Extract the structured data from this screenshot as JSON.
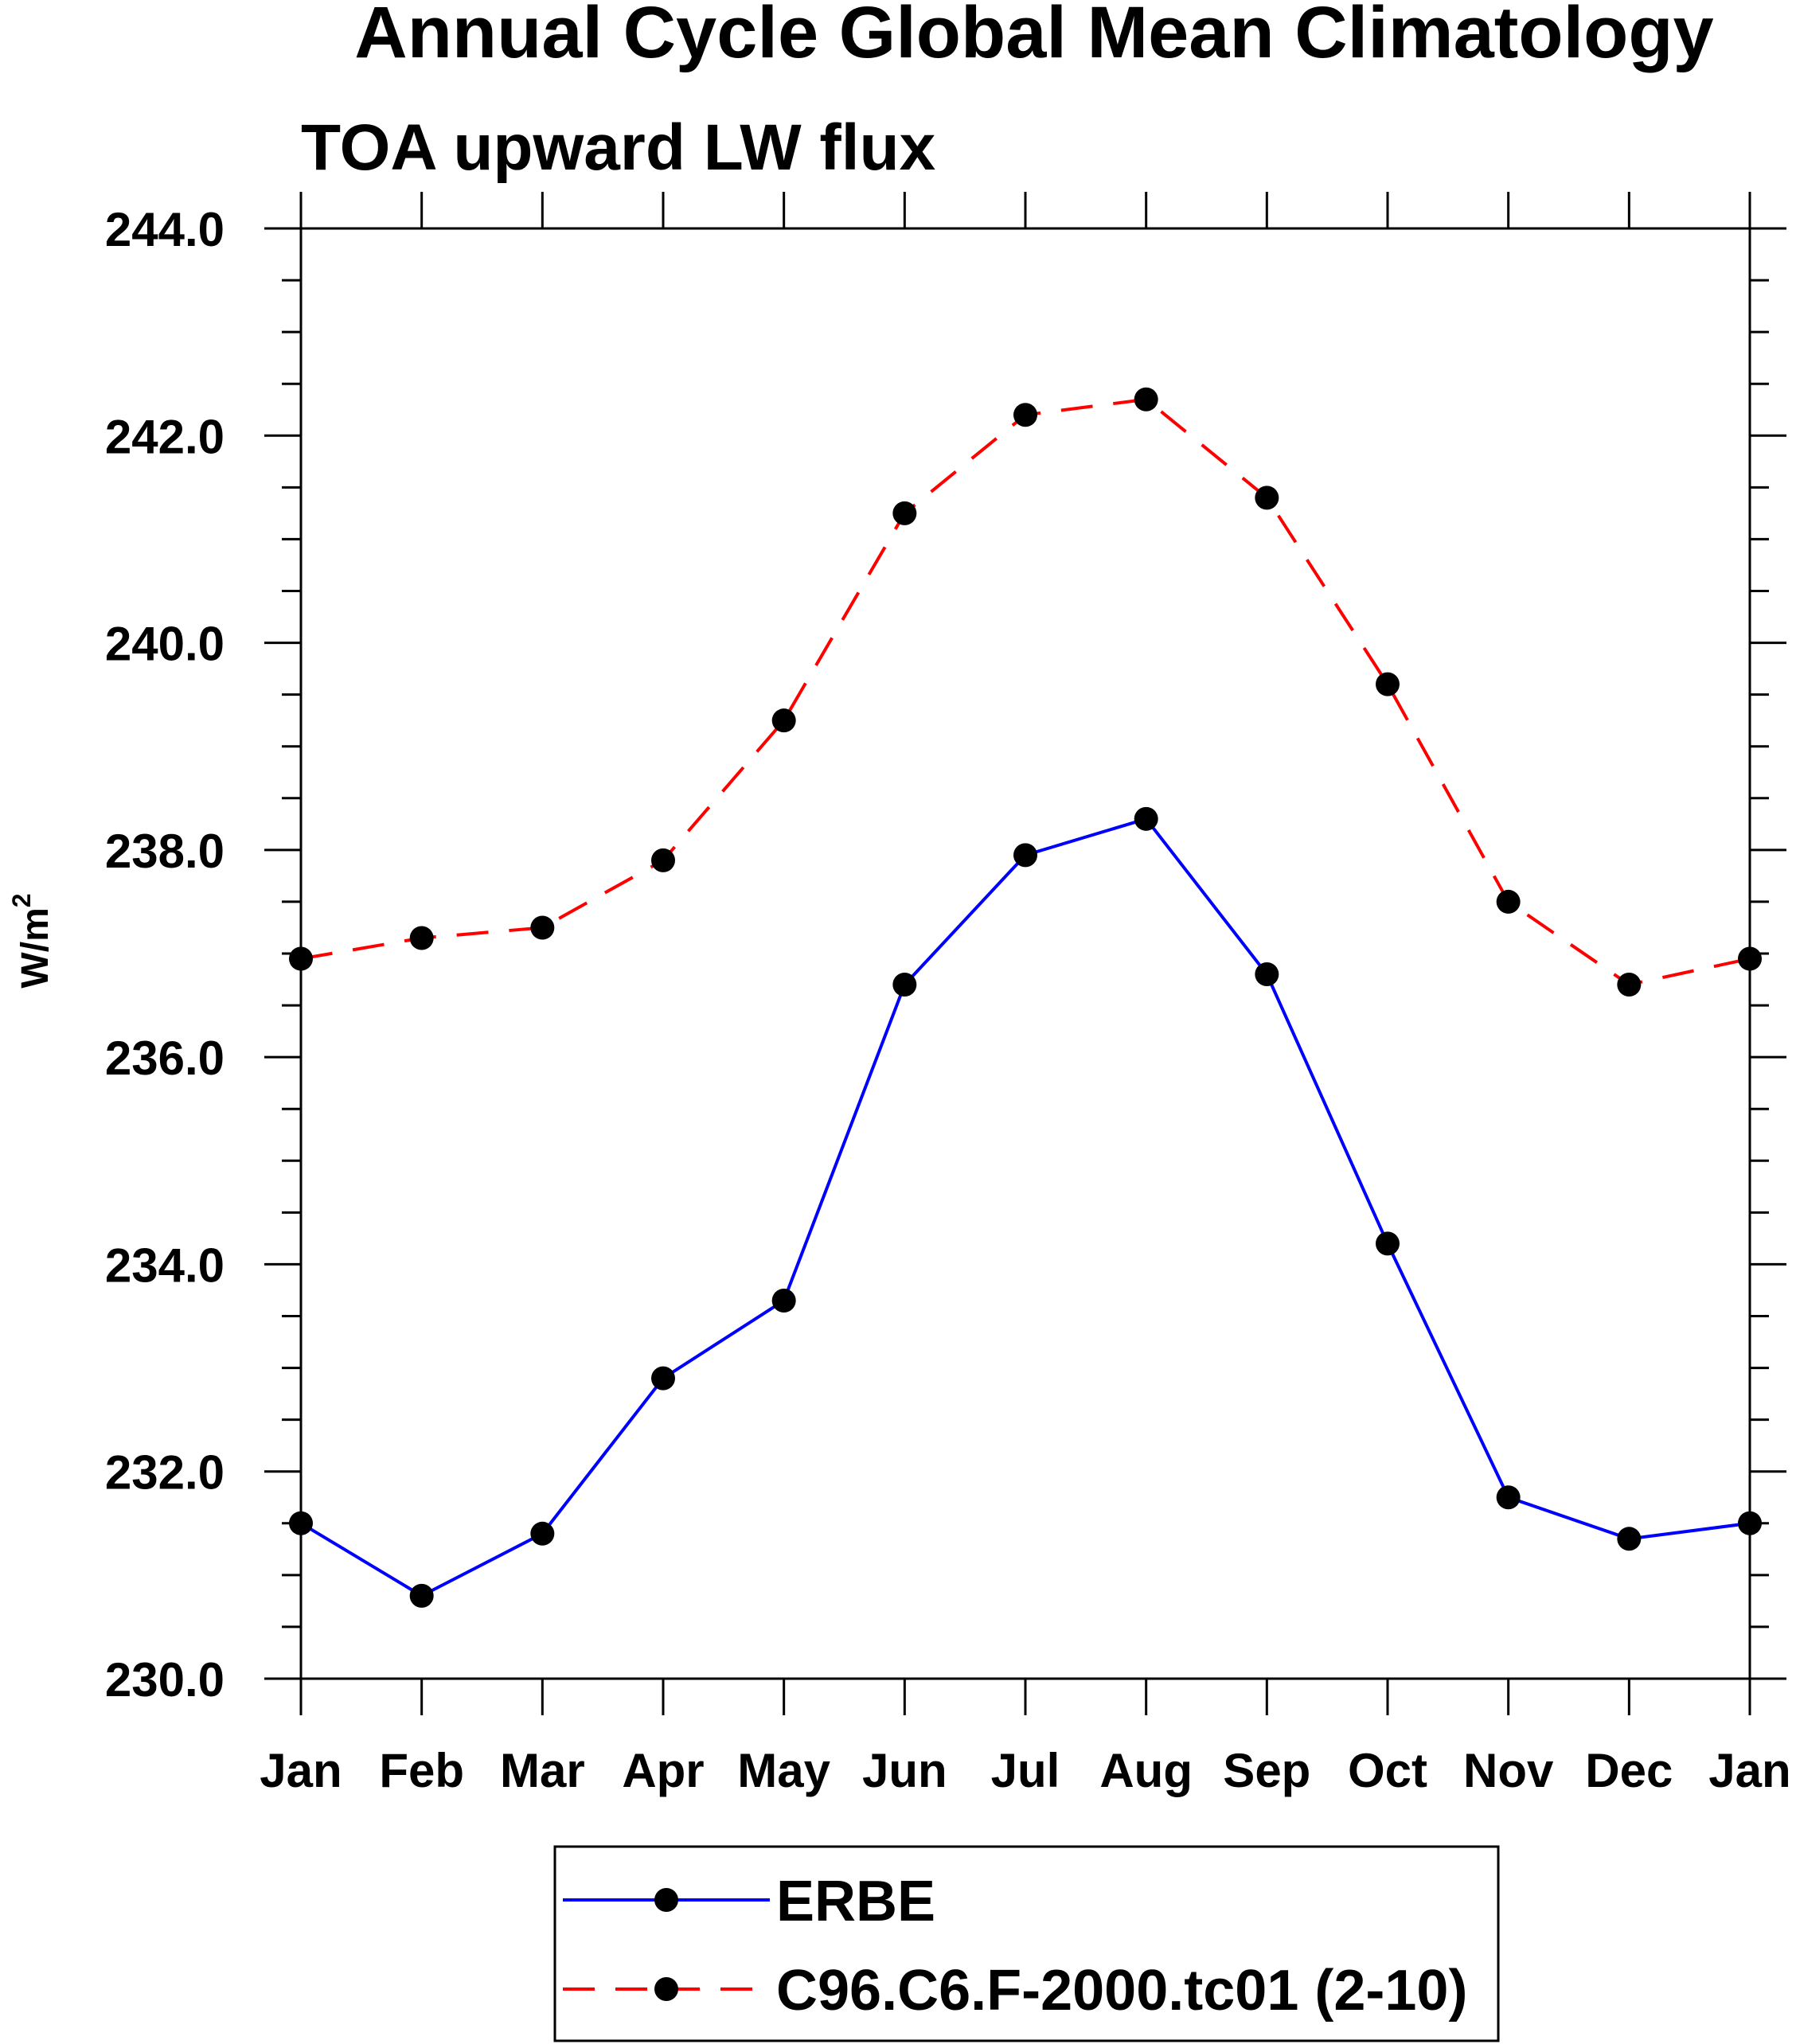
{
  "chart_data": {
    "type": "line",
    "title": "Annual Cycle Global Mean Climatology",
    "subtitle": "TOA upward LW flux",
    "ylabel": "W/m",
    "ylabel_superscript": "2",
    "ylim": [
      230,
      244
    ],
    "yticks": [
      "230.0",
      "232.0",
      "234.0",
      "236.0",
      "238.0",
      "240.0",
      "242.0",
      "244.0"
    ],
    "categories": [
      "Jan",
      "Feb",
      "Mar",
      "Apr",
      "May",
      "Jun",
      "Jul",
      "Aug",
      "Sep",
      "Oct",
      "Nov",
      "Dec",
      "Jan"
    ],
    "grid": false,
    "legend_position": "bottom",
    "series": [
      {
        "name": "ERBE",
        "color": "#0000ff",
        "line_style": "solid",
        "marker": "filled-circle",
        "values": [
          231.5,
          230.8,
          231.4,
          232.9,
          233.65,
          236.7,
          237.95,
          238.3,
          236.8,
          234.2,
          231.75,
          231.35,
          231.5
        ]
      },
      {
        "name": "C96.C6.F-2000.tc01 (2-10)",
        "color": "#ff0000",
        "line_style": "dashed",
        "marker": "filled-circle",
        "values": [
          236.95,
          237.15,
          237.25,
          237.9,
          239.25,
          241.25,
          242.2,
          242.35,
          241.4,
          239.6,
          237.5,
          236.7,
          236.95
        ]
      }
    ]
  }
}
